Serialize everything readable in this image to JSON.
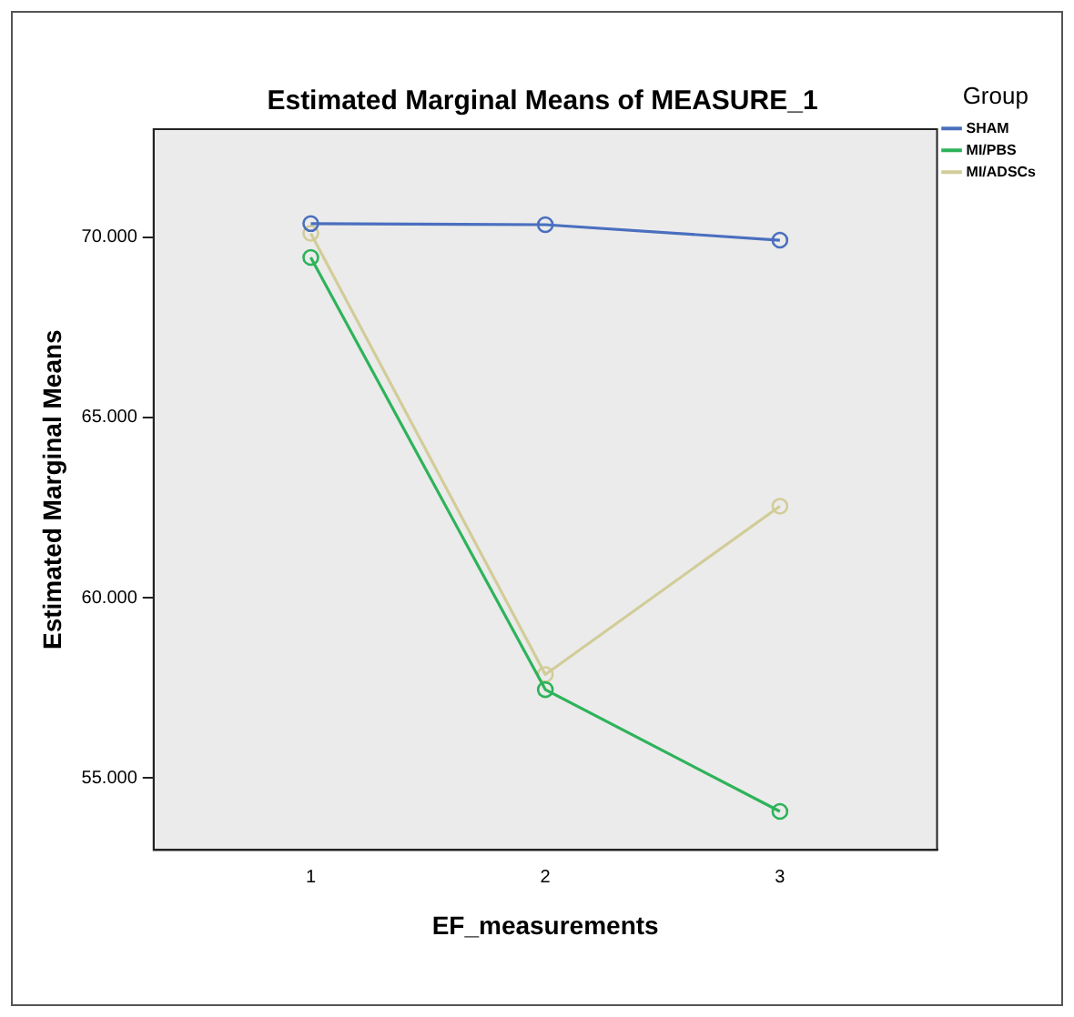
{
  "chart_data": {
    "type": "line",
    "title": "Estimated Marginal Means of MEASURE_1",
    "xlabel": "EF_measurements",
    "ylabel": "Estimated Marginal Means",
    "legend_title": "Group",
    "x": [
      1,
      2,
      3
    ],
    "xlim": [
      0.33,
      3.67
    ],
    "xticks": [
      1,
      2,
      3
    ],
    "ylim": [
      53,
      73
    ],
    "yticks": [
      {
        "value": 55,
        "label": "55.000"
      },
      {
        "value": 60,
        "label": "60.000"
      },
      {
        "value": 65,
        "label": "65.000"
      },
      {
        "value": 70,
        "label": "70.000"
      }
    ],
    "series": [
      {
        "name": "SHAM",
        "color": "#4a6fbf",
        "values": [
          70.38,
          70.35,
          69.92
        ]
      },
      {
        "name": "MI/PBS",
        "color": "#2eb35a",
        "values": [
          69.44,
          57.45,
          54.07
        ]
      },
      {
        "name": "MI/ADSCs",
        "color": "#d2cc98",
        "values": [
          70.11,
          57.87,
          62.54
        ]
      }
    ],
    "marker": "circle",
    "line_style": "solid",
    "grid": false,
    "legend": "top right"
  }
}
